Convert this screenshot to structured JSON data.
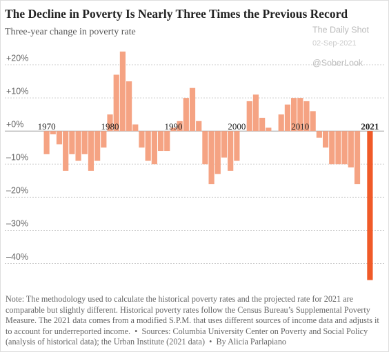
{
  "chart_data": {
    "type": "bar",
    "title": "The Decline in Poverty Is Nearly Three Times the Previous Record",
    "subtitle": "Three-year change in poverty rate",
    "watermarks": [
      "The Daily Shot",
      "02-Sep-2021",
      "@SoberLook"
    ],
    "x": [
      1970,
      1971,
      1972,
      1973,
      1974,
      1975,
      1976,
      1977,
      1978,
      1979,
      1980,
      1981,
      1982,
      1983,
      1984,
      1985,
      1986,
      1987,
      1988,
      1989,
      1990,
      1991,
      1992,
      1993,
      1994,
      1995,
      1996,
      1997,
      1998,
      1999,
      2000,
      2001,
      2002,
      2003,
      2004,
      2005,
      2006,
      2007,
      2008,
      2009,
      2010,
      2011,
      2012,
      2013,
      2014,
      2015,
      2016,
      2017,
      2018,
      2019,
      2020,
      2021
    ],
    "values": [
      -7,
      -1,
      -4,
      -12,
      -7,
      -9,
      -7,
      -12,
      -9,
      -5,
      5,
      17,
      24,
      15,
      2,
      -5,
      -9,
      -10,
      -6,
      -6,
      1,
      3,
      10,
      13,
      3,
      -10,
      -16,
      -13,
      -8,
      -12,
      -9,
      0,
      9,
      11,
      4,
      1,
      0,
      5,
      8,
      10,
      10,
      9,
      6,
      -2,
      -5,
      -10,
      -10,
      -10,
      -11,
      -16,
      null,
      -45
    ],
    "colors": [
      "#f5a383",
      "#f05a28"
    ],
    "highlight": 2021,
    "xlim": [
      1969.5,
      2021.5
    ],
    "xticks": [
      1970,
      1980,
      1990,
      2000,
      2010,
      2021
    ],
    "ylim": [
      -48,
      25
    ],
    "yticks": [
      {
        "value": 20,
        "label": "+20%"
      },
      {
        "value": 10,
        "label": "+10%"
      },
      {
        "value": 0,
        "label": "+0%"
      },
      {
        "value": -10,
        "label": "–10%"
      },
      {
        "value": -20,
        "label": "–20%"
      },
      {
        "value": -30,
        "label": "–30%"
      },
      {
        "value": -40,
        "label": "–40%"
      }
    ],
    "grid": true,
    "note": "Note: The methodology used to calculate the historical poverty rates and the projected rate for 2021 are comparable but slightly different. Historical poverty rates follow the Census Bureau’s Supplemental Poverty Measure. The 2021 data comes from a modified S.P.M. that uses different sources of income data and adjusts it to account for underreported income.  •  Sources: Columbia University Center on Poverty and Social Policy (analysis of historical data); the Urban Institute (2021 data)  •  By Alicia Parlapiano"
  }
}
